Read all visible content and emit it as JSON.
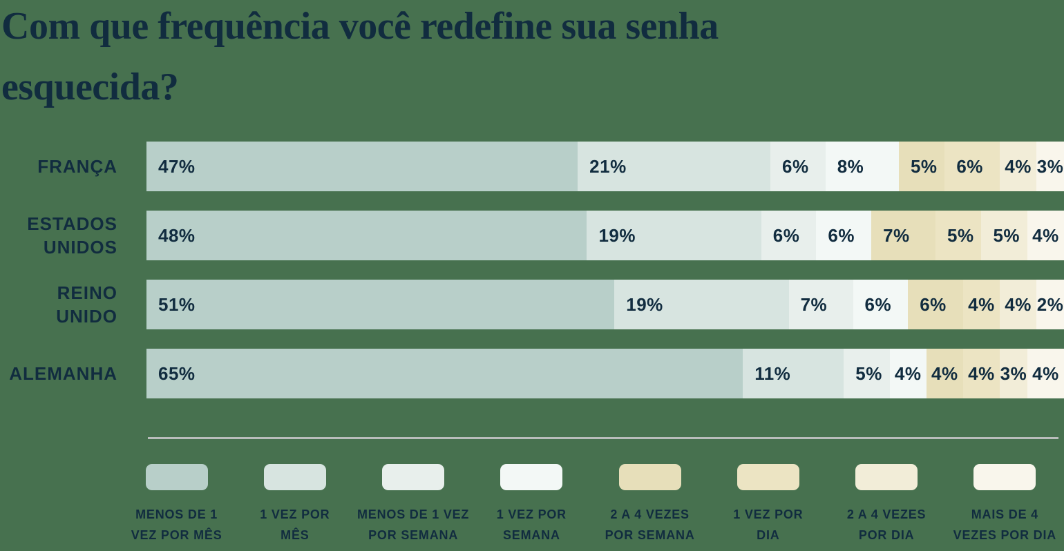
{
  "colors": {
    "background": "#47714F",
    "text": "#112C3F",
    "separator": "#B9BDBB",
    "palette": [
      "#B8CFC9",
      "#D7E4E0",
      "#E8EFEC",
      "#F3F8F6",
      "#E7DFBA",
      "#ECE4C3",
      "#F2EDD8",
      "#F9F6EC"
    ]
  },
  "chart_data": {
    "type": "bar",
    "stacked": true,
    "orientation": "horizontal",
    "unit": "%",
    "title": "Com que frequência você redefine sua senha esquecida?",
    "title_lines": [
      "Com que frequência você redefine sua senha",
      "esquecida?"
    ],
    "legend_position": "bottom",
    "segment_labels": [
      {
        "lines": [
          "MENOS DE 1",
          "VEZ POR MÊS"
        ]
      },
      {
        "lines": [
          "1 VEZ POR",
          "MÊS"
        ]
      },
      {
        "lines": [
          "MENOS DE 1 VEZ",
          "POR SEMANA"
        ]
      },
      {
        "lines": [
          "1 VEZ POR",
          "SEMANA"
        ]
      },
      {
        "lines": [
          "2 A 4 VEZES",
          "POR SEMANA"
        ]
      },
      {
        "lines": [
          "1 VEZ POR",
          "DIA"
        ]
      },
      {
        "lines": [
          "2 A 4 VEZES",
          "POR DIA"
        ]
      },
      {
        "lines": [
          "MAIS DE 4",
          "VEZES POR DIA"
        ]
      }
    ],
    "rows": [
      {
        "name": "FRANÇA",
        "name_lines": [
          "FRANÇA"
        ],
        "values": [
          47,
          21,
          6,
          8,
          5,
          6,
          4,
          3
        ]
      },
      {
        "name": "ESTADOS UNIDOS",
        "name_lines": [
          "ESTADOS",
          "UNIDOS"
        ],
        "values": [
          48,
          19,
          6,
          6,
          7,
          5,
          5,
          4
        ]
      },
      {
        "name": "REINO UNIDO",
        "name_lines": [
          "REINO",
          "UNIDO"
        ],
        "values": [
          51,
          19,
          7,
          6,
          6,
          4,
          4,
          2
        ]
      },
      {
        "name": "ALEMANHA",
        "name_lines": [
          "ALEMANHA"
        ],
        "values": [
          65,
          11,
          5,
          4,
          4,
          4,
          3,
          4
        ]
      }
    ]
  }
}
